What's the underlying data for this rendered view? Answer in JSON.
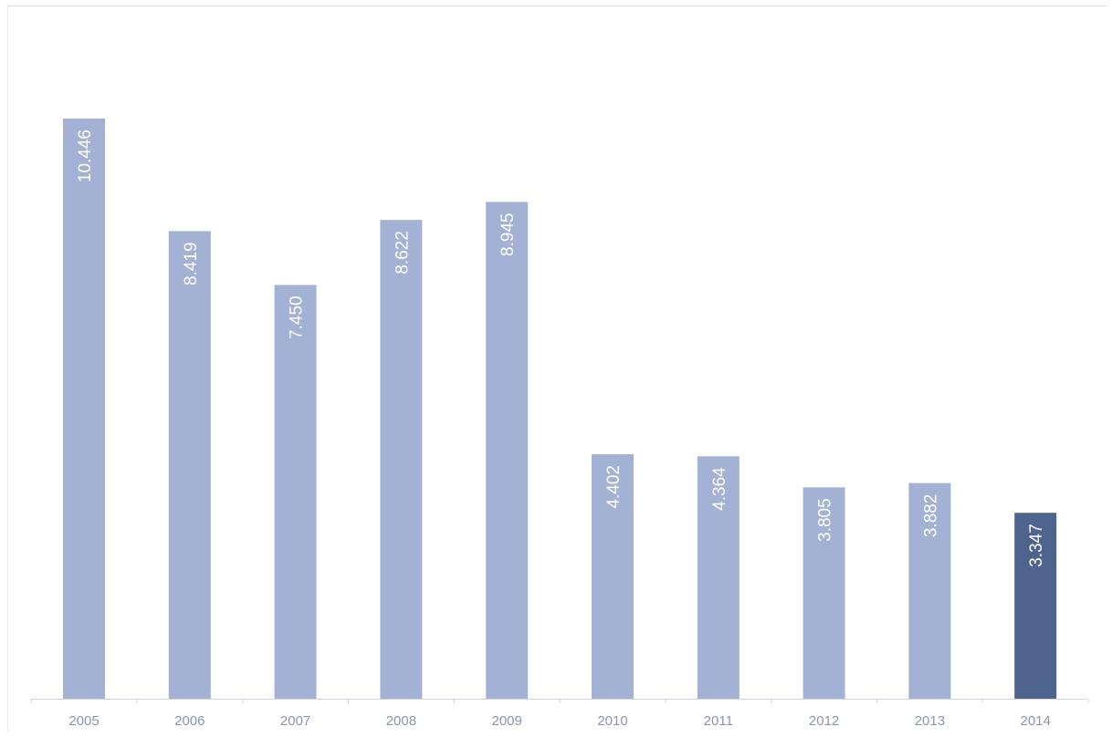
{
  "chart_data": {
    "type": "bar",
    "categories": [
      "2005",
      "2006",
      "2007",
      "2008",
      "2009",
      "2010",
      "2011",
      "2012",
      "2013",
      "2014"
    ],
    "values": [
      10446,
      8419,
      7450,
      8622,
      8945,
      4402,
      4364,
      3805,
      3882,
      3347
    ],
    "value_labels": [
      "10.446",
      "8.419",
      "7.450",
      "8.622",
      "8.945",
      "4.402",
      "4.364",
      "3.805",
      "3.882",
      "3.347"
    ],
    "title": "",
    "xlabel": "",
    "ylabel": "",
    "ylim": [
      0,
      11500
    ],
    "grid": false,
    "legend": "none",
    "colors": {
      "bar": "#a3b2d4",
      "highlight_bar": "#4f638f",
      "axis": "#cfd4e3",
      "tick_text": "#8a95ad",
      "value_text": "#ffffff"
    },
    "highlight_index": 9
  }
}
